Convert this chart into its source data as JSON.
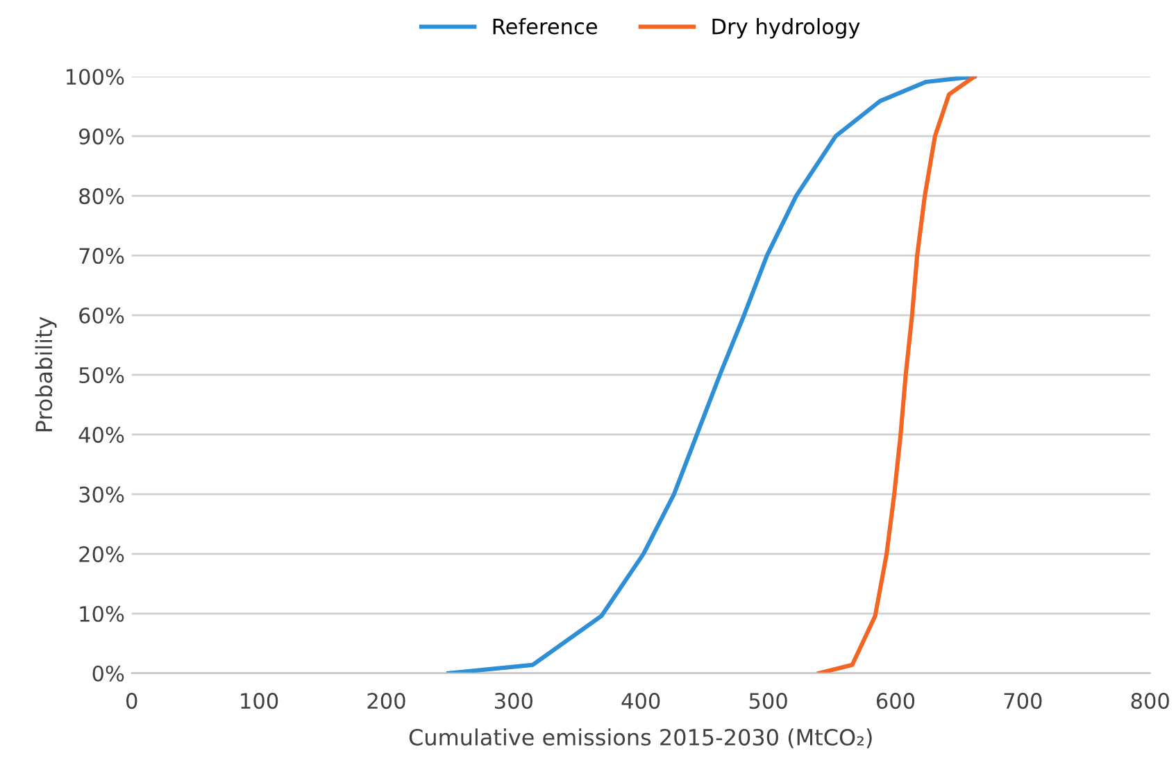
{
  "chart_data": {
    "type": "line",
    "xlabel": "Cumulative emissions 2015-2030 (MtCO₂)",
    "ylabel": "Probability",
    "xlim": [
      0,
      800
    ],
    "xticks": [
      0,
      100,
      200,
      300,
      400,
      500,
      600,
      700,
      800
    ],
    "ylim": [
      0,
      100
    ],
    "yticks": [
      {
        "value": 0,
        "label": "0%"
      },
      {
        "value": 10,
        "label": "10%"
      },
      {
        "value": 20,
        "label": "20%"
      },
      {
        "value": 30,
        "label": "30%"
      },
      {
        "value": 40,
        "label": "40%"
      },
      {
        "value": 50,
        "label": "50%"
      },
      {
        "value": 60,
        "label": "60%"
      },
      {
        "value": 70,
        "label": "70%"
      },
      {
        "value": 80,
        "label": "80%"
      },
      {
        "value": 90,
        "label": "90%"
      },
      {
        "value": 100,
        "label": "100%"
      }
    ],
    "grid": "y",
    "legend": "top",
    "marker": "none",
    "line_style": "solid",
    "series": [
      {
        "name": "Reference",
        "color": "#2e8fd6",
        "x": [
          249,
          315,
          369,
          402,
          426,
          444,
          462,
          481,
          499,
          522,
          553,
          588,
          624,
          662
        ],
        "values": [
          0,
          1.4,
          9.6,
          20,
          30,
          40,
          50,
          60,
          70,
          80,
          90,
          95.9,
          99.1,
          100
        ]
      },
      {
        "name": "Dry hydrology",
        "color": "#f26522",
        "x": [
          540,
          566,
          584,
          593,
          599,
          604,
          608,
          613,
          617,
          623,
          631,
          642,
          662
        ],
        "values": [
          0,
          1.4,
          9.6,
          20,
          30,
          40,
          50,
          60,
          70,
          80,
          90,
          97,
          100
        ]
      }
    ]
  }
}
